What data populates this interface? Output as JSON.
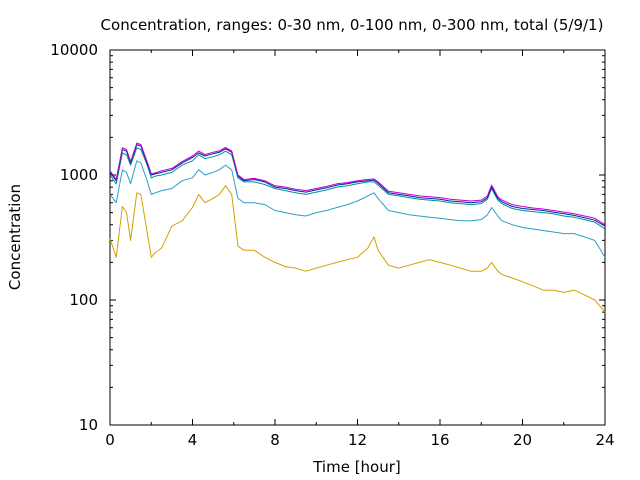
{
  "chart_data": {
    "type": "line",
    "title": "Concentration, ranges: 0-30 nm, 0-100 nm, 0-300 nm, total (5/9/1)",
    "xlabel": "Time [hour]",
    "ylabel": "Concentration",
    "xlim": [
      0,
      24
    ],
    "ylim": [
      10,
      10000
    ],
    "yscale": "log",
    "grid": false,
    "legend": "none",
    "x_ticks": [
      "0",
      "4",
      "8",
      "12",
      "16",
      "20",
      "24"
    ],
    "x_minor_step": 2,
    "y_ticks": [
      "10",
      "100",
      "1000",
      "10000"
    ],
    "x": [
      0,
      0.3,
      0.6,
      0.8,
      1.0,
      1.3,
      1.5,
      1.8,
      2.0,
      2.2,
      2.5,
      3.0,
      3.5,
      4.0,
      4.3,
      4.6,
      5.0,
      5.3,
      5.6,
      5.9,
      6.2,
      6.5,
      7.0,
      7.5,
      8.0,
      8.5,
      9.0,
      9.5,
      10.0,
      10.5,
      11.0,
      11.5,
      12.0,
      12.5,
      12.8,
      13.0,
      13.5,
      14.0,
      14.5,
      15.0,
      15.5,
      16.0,
      16.5,
      17.0,
      17.5,
      18.0,
      18.3,
      18.5,
      18.8,
      19.0,
      19.5,
      20.0,
      20.5,
      21.0,
      21.5,
      22.0,
      22.5,
      23.0,
      23.5,
      24.0
    ],
    "series": [
      {
        "color": "#d4a000",
        "values": [
          310,
          220,
          560,
          500,
          300,
          720,
          700,
          350,
          220,
          240,
          260,
          390,
          430,
          550,
          700,
          600,
          650,
          700,
          820,
          700,
          270,
          250,
          250,
          220,
          200,
          185,
          180,
          170,
          180,
          190,
          200,
          210,
          220,
          260,
          320,
          250,
          190,
          180,
          190,
          200,
          210,
          200,
          190,
          180,
          170,
          170,
          180,
          200,
          170,
          160,
          150,
          140,
          130,
          120,
          120,
          115,
          120,
          110,
          100,
          80
        ]
      },
      {
        "color": "#2aa0c8",
        "values": [
          700,
          600,
          1100,
          1050,
          850,
          1300,
          1250,
          900,
          700,
          720,
          750,
          780,
          900,
          950,
          1100,
          1000,
          1050,
          1100,
          1200,
          1100,
          650,
          600,
          600,
          580,
          520,
          500,
          480,
          470,
          500,
          520,
          550,
          580,
          620,
          680,
          720,
          650,
          520,
          500,
          480,
          470,
          460,
          450,
          440,
          430,
          430,
          440,
          480,
          550,
          470,
          430,
          400,
          380,
          370,
          360,
          350,
          340,
          340,
          320,
          300,
          220
        ]
      },
      {
        "color": "#009088",
        "values": [
          1000,
          850,
          1500,
          1450,
          1200,
          1650,
          1600,
          1200,
          950,
          980,
          1000,
          1050,
          1200,
          1300,
          1450,
          1350,
          1400,
          1450,
          1550,
          1450,
          950,
          880,
          880,
          840,
          780,
          750,
          720,
          700,
          730,
          760,
          800,
          820,
          850,
          880,
          880,
          830,
          700,
          680,
          660,
          640,
          630,
          620,
          600,
          590,
          580,
          590,
          640,
          780,
          630,
          590,
          540,
          520,
          510,
          500,
          490,
          470,
          460,
          440,
          420,
          370
        ]
      },
      {
        "color": "#0020c0",
        "values": [
          1050,
          900,
          1600,
          1550,
          1250,
          1750,
          1700,
          1250,
          1000,
          1020,
          1050,
          1100,
          1250,
          1380,
          1500,
          1420,
          1480,
          1520,
          1620,
          1520,
          980,
          900,
          920,
          880,
          800,
          780,
          750,
          730,
          760,
          790,
          830,
          850,
          880,
          900,
          910,
          860,
          720,
          700,
          680,
          660,
          650,
          640,
          620,
          610,
          600,
          610,
          660,
          800,
          650,
          610,
          560,
          540,
          530,
          520,
          505,
          490,
          475,
          455,
          435,
          390
        ]
      },
      {
        "color": "#c000c0",
        "values": [
          1080,
          920,
          1650,
          1600,
          1280,
          1800,
          1750,
          1280,
          1020,
          1040,
          1080,
          1130,
          1280,
          1420,
          1550,
          1460,
          1520,
          1560,
          1660,
          1560,
          1000,
          920,
          940,
          900,
          820,
          800,
          770,
          750,
          780,
          810,
          850,
          870,
          900,
          920,
          930,
          880,
          740,
          720,
          700,
          680,
          670,
          660,
          640,
          630,
          620,
          630,
          680,
          830,
          670,
          630,
          580,
          560,
          545,
          535,
          520,
          505,
          490,
          470,
          450,
          400
        ]
      }
    ]
  }
}
